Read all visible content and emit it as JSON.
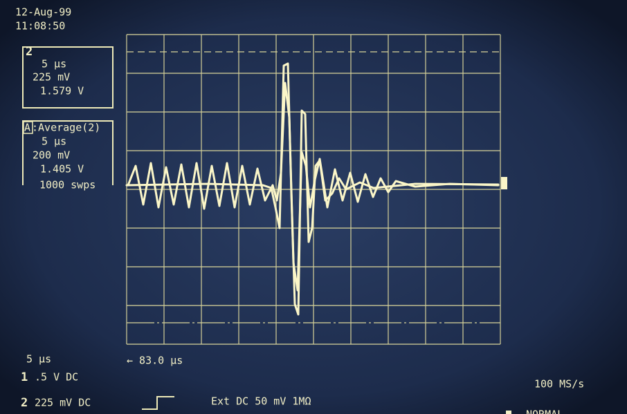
{
  "header": {
    "date": "12-Aug-99",
    "time": "11:08:50"
  },
  "channel_box": {
    "channel": "2",
    "timebase": "5 µs",
    "scale": "225 mV",
    "offset": "1.579 V"
  },
  "math_box": {
    "label": "A",
    "function": ":Average(2)",
    "timebase": "5 µs",
    "scale": "200 mV",
    "offset": "1.405 V",
    "sweeps": "1000 swps"
  },
  "footer": {
    "timebase": "5 µs",
    "delay": "← 83.0 µs",
    "ch1_label": "1",
    "ch1_setting": ".5  V  DC",
    "ch2_label": "2",
    "ch2_setting": "225 mV  DC",
    "trigger": "Ext  DC 50 mV 1MΩ",
    "sample_rate": "100 MS/s",
    "mode": "NORMAL"
  }
}
